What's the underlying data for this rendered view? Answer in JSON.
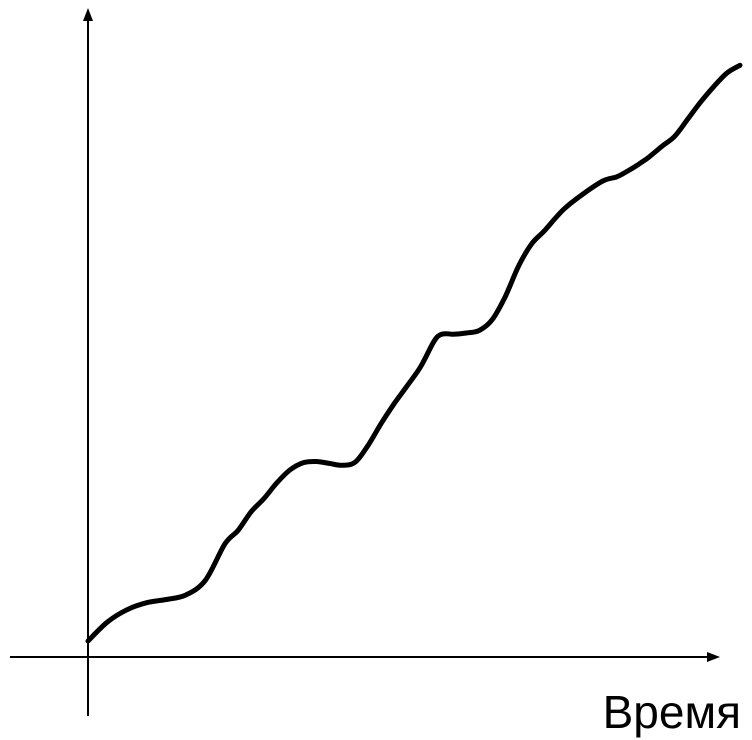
{
  "chart_data": {
    "type": "line",
    "title": "",
    "xlabel": "Время",
    "ylabel": "",
    "grid": false,
    "legend": "none",
    "line_color": "#000000",
    "xlim": [
      0,
      100
    ],
    "ylim": [
      0,
      100
    ],
    "series": [
      {
        "x": [
          0,
          3,
          6,
          9,
          12,
          15,
          18,
          21,
          23,
          25,
          27,
          29,
          31,
          33,
          35,
          37,
          39,
          41,
          43,
          45,
          47,
          49,
          51,
          53,
          54,
          55,
          56,
          58,
          60,
          62,
          64,
          66,
          68,
          70,
          73,
          76,
          79,
          81,
          82,
          83,
          84,
          85,
          86,
          88,
          90,
          92,
          94,
          96,
          98,
          100
        ],
        "y": [
          2.5,
          5.5,
          7.4,
          8.5,
          9,
          9.7,
          12,
          17.7,
          19.8,
          22.7,
          24.8,
          27.3,
          29.3,
          30.4,
          30.6,
          30.3,
          30,
          30.5,
          33.2,
          36.6,
          39.7,
          42.5,
          45.4,
          49.3,
          50.4,
          50.6,
          50.5,
          50.7,
          51.1,
          52.8,
          56.4,
          61.1,
          64.6,
          66.7,
          70.1,
          72.5,
          74.5,
          75.1,
          75.6,
          76.2,
          76.8,
          77.5,
          78.2,
          79.9,
          81.5,
          84.2,
          86.9,
          89.3,
          91.4,
          92.6
        ]
      }
    ]
  }
}
